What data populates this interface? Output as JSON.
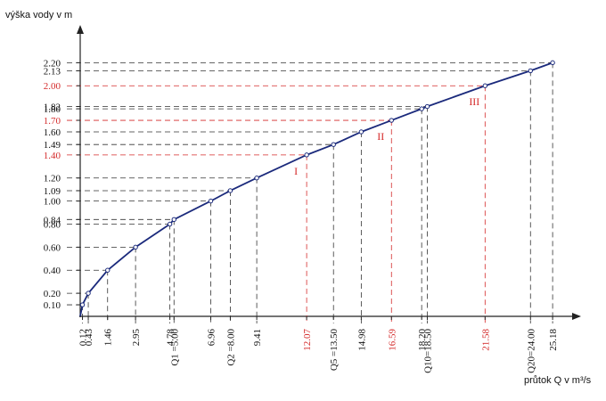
{
  "chart_data": {
    "type": "line",
    "y_label": "výška vody v m",
    "x_label": "průtok Q v m³/s",
    "color": "#1b2a7c",
    "x": [
      0.12,
      0.43,
      1.46,
      2.95,
      4.78,
      5.0,
      6.96,
      8.0,
      9.41,
      12.07,
      13.5,
      14.98,
      16.59,
      18.2,
      18.5,
      21.58,
      24.0,
      25.18
    ],
    "values": [
      0.1,
      0.2,
      0.4,
      0.6,
      0.8,
      0.84,
      1.0,
      1.09,
      1.2,
      1.4,
      1.49,
      1.6,
      1.7,
      1.8,
      1.82,
      2.0,
      2.13,
      2.2
    ],
    "xlim": [
      0,
      26.6
    ],
    "ylim": [
      0,
      2.45
    ],
    "xticks": [
      0.12,
      0.43,
      1.46,
      2.95,
      4.78,
      {
        "value": 5.0,
        "label": "Q1 =5.00"
      },
      6.96,
      {
        "value": 8.0,
        "label": "Q2 =8.00"
      },
      9.41,
      {
        "value": 12.07,
        "label": "12.07",
        "color": "#d42a2a"
      },
      {
        "value": 13.5,
        "label": "Q5 =13.50"
      },
      14.98,
      {
        "value": 16.59,
        "label": "16.59",
        "color": "#d42a2a"
      },
      {
        "value": 18.2,
        "label": "18.20"
      },
      {
        "value": 18.5,
        "label": "Q10=18.50"
      },
      {
        "value": 21.58,
        "label": "21.58",
        "color": "#d42a2a"
      },
      {
        "value": 24.0,
        "label": "Q20=24.00"
      },
      25.18
    ],
    "yticks": [
      {
        "value": 0.1,
        "label": "0.10"
      },
      {
        "value": 0.2,
        "label": "0.20"
      },
      {
        "value": 0.4,
        "label": "0.40"
      },
      {
        "value": 0.6,
        "label": "0.60"
      },
      {
        "value": 0.8,
        "label": "0.80"
      },
      0.84,
      {
        "value": 1.0,
        "label": "1.00"
      },
      1.09,
      {
        "value": 1.2,
        "label": "1.20"
      },
      {
        "value": 1.4,
        "label": "1.40",
        "color": "#d42a2a"
      },
      1.49,
      {
        "value": 1.6,
        "label": "1.60"
      },
      {
        "value": 1.7,
        "label": "1.70",
        "color": "#d42a2a"
      },
      {
        "value": 1.8,
        "label": "1.80"
      },
      1.82,
      {
        "value": 2.0,
        "label": "2.00",
        "color": "#d42a2a"
      },
      2.13,
      {
        "value": 2.2,
        "label": "2.20"
      }
    ],
    "annotations": [
      {
        "text": "I",
        "x": 12.07,
        "y": 1.4,
        "color": "#d42a2a"
      },
      {
        "text": "II",
        "x": 16.59,
        "y": 1.7,
        "color": "#d42a2a"
      },
      {
        "text": "III",
        "x": 21.58,
        "y": 2.0,
        "color": "#d42a2a"
      }
    ]
  }
}
